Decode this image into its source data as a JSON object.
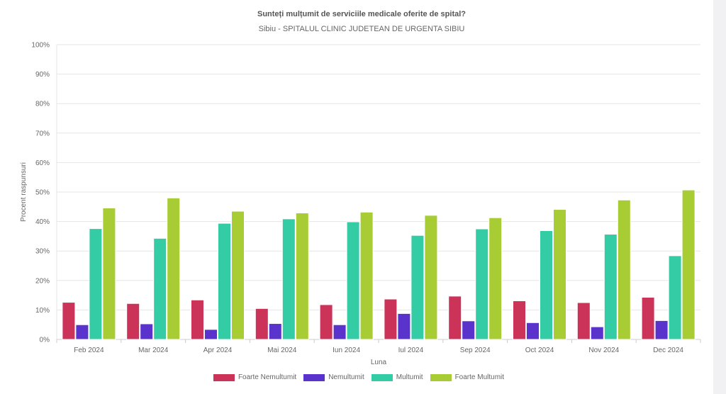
{
  "chart_data": {
    "type": "bar",
    "title": "Sunteți mulțumit de serviciile medicale oferite de spital?",
    "subtitle": "Sibiu - SPITALUL CLINIC JUDETEAN  DE URGENTA SIBIU",
    "xlabel": "Luna",
    "ylabel": "Procent raspunsuri",
    "ylim": [
      0,
      100
    ],
    "yticks": [
      "0%",
      "10%",
      "20%",
      "30%",
      "40%",
      "50%",
      "60%",
      "70%",
      "80%",
      "90%",
      "100%"
    ],
    "grid": true,
    "legend_position": "bottom",
    "categories": [
      "Feb 2024",
      "Mar 2024",
      "Apr 2024",
      "Mai 2024",
      "Iun 2024",
      "Iul 2024",
      "Sep 2024",
      "Oct 2024",
      "Nov 2024",
      "Dec 2024"
    ],
    "series": [
      {
        "name": "Foarte Nemultumit",
        "color": "#cc3359",
        "values": [
          12.6,
          12.2,
          13.4,
          10.5,
          11.8,
          13.7,
          14.7,
          13.1,
          12.5,
          14.3
        ]
      },
      {
        "name": "Nemultumit",
        "color": "#5a32cc",
        "values": [
          5.0,
          5.3,
          3.4,
          5.4,
          5.0,
          8.8,
          6.3,
          5.7,
          4.3,
          6.4
        ]
      },
      {
        "name": "Multumit",
        "color": "#33cca5",
        "values": [
          37.6,
          34.3,
          39.4,
          40.9,
          39.9,
          35.3,
          37.5,
          36.9,
          35.7,
          28.4
        ]
      },
      {
        "name": "Foarte Multumit",
        "color": "#a8cc33",
        "values": [
          44.6,
          48.0,
          43.5,
          42.9,
          43.2,
          42.1,
          41.3,
          44.1,
          47.3,
          50.7
        ]
      }
    ]
  }
}
